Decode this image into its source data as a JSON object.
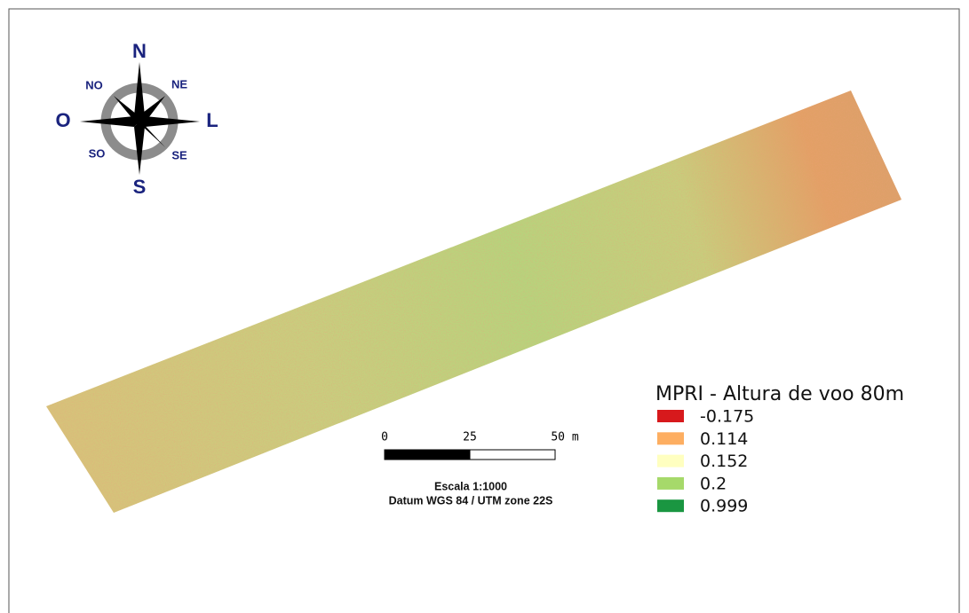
{
  "compass": {
    "n": "N",
    "s": "S",
    "w": "O",
    "e": "L",
    "nw": "NO",
    "ne": "NE",
    "sw": "SO",
    "se": "SE"
  },
  "legend": {
    "title": "MPRI - Altura de voo 80m",
    "items": [
      {
        "label": "-0.175",
        "color": "#d7191c"
      },
      {
        "label": "0.114",
        "color": "#fdae61"
      },
      {
        "label": "0.152",
        "color": "#ffffc0"
      },
      {
        "label": "0.2",
        "color": "#a6d96a"
      },
      {
        "label": "0.999",
        "color": "#1a9641"
      }
    ]
  },
  "scale_bar": {
    "labels": [
      "0",
      "25",
      "50 m"
    ],
    "scale": "Escala 1:1000",
    "datum": "Datum WGS 84 / UTM zone 22S"
  }
}
